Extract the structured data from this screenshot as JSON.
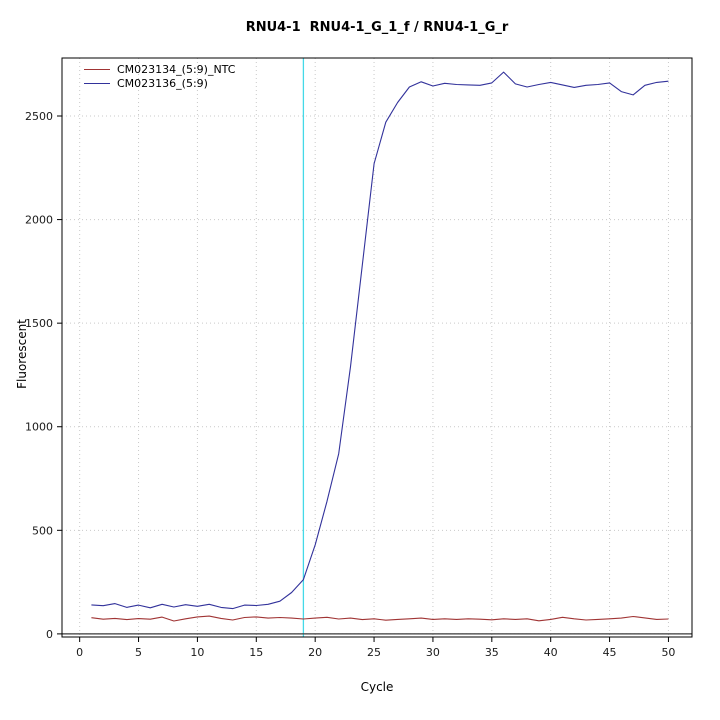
{
  "chart_data": {
    "type": "line",
    "title": "RNU4-1  RNU4-1_G_1_f / RNU4-1_G_r",
    "xlabel": "Cycle",
    "ylabel": "Fluorescent",
    "xlim": [
      -1.5,
      52
    ],
    "ylim": [
      -15,
      2780
    ],
    "xticks": [
      0,
      5,
      10,
      15,
      20,
      25,
      30,
      35,
      40,
      45,
      50
    ],
    "yticks": [
      0,
      500,
      1000,
      1500,
      2000,
      2500
    ],
    "grid": true,
    "grid_color": "#c9c9c9",
    "threshold_cycle_x": 19,
    "threshold_line_color": "#44d9e8",
    "baseline_y": 0,
    "baseline_color": "#3a3a3a",
    "legend_position": "top-left",
    "x_start_cycle": 1,
    "series": [
      {
        "name": "CM023134_(5:9)_NTC",
        "color": "#a03434",
        "values": [
          78,
          71,
          75,
          69,
          74,
          71,
          81,
          62,
          73,
          82,
          86,
          75,
          67,
          79,
          82,
          76,
          79,
          76,
          72,
          76,
          80,
          72,
          76,
          69,
          73,
          66,
          70,
          73,
          76,
          70,
          73,
          70,
          73,
          71,
          68,
          73,
          70,
          73,
          63,
          70,
          80,
          73,
          67,
          70,
          73,
          76,
          84,
          77,
          70,
          72
        ]
      },
      {
        "name": "CM023136_(5:9)",
        "color": "#32329b",
        "values": [
          140,
          136,
          146,
          128,
          139,
          126,
          143,
          130,
          141,
          133,
          143,
          128,
          122,
          139,
          137,
          143,
          158,
          200,
          262,
          430,
          640,
          870,
          1290,
          1780,
          2270,
          2470,
          2565,
          2640,
          2665,
          2645,
          2658,
          2652,
          2650,
          2648,
          2660,
          2712,
          2655,
          2640,
          2652,
          2662,
          2650,
          2638,
          2648,
          2652,
          2660,
          2618,
          2602,
          2648,
          2662,
          2668
        ]
      }
    ]
  }
}
